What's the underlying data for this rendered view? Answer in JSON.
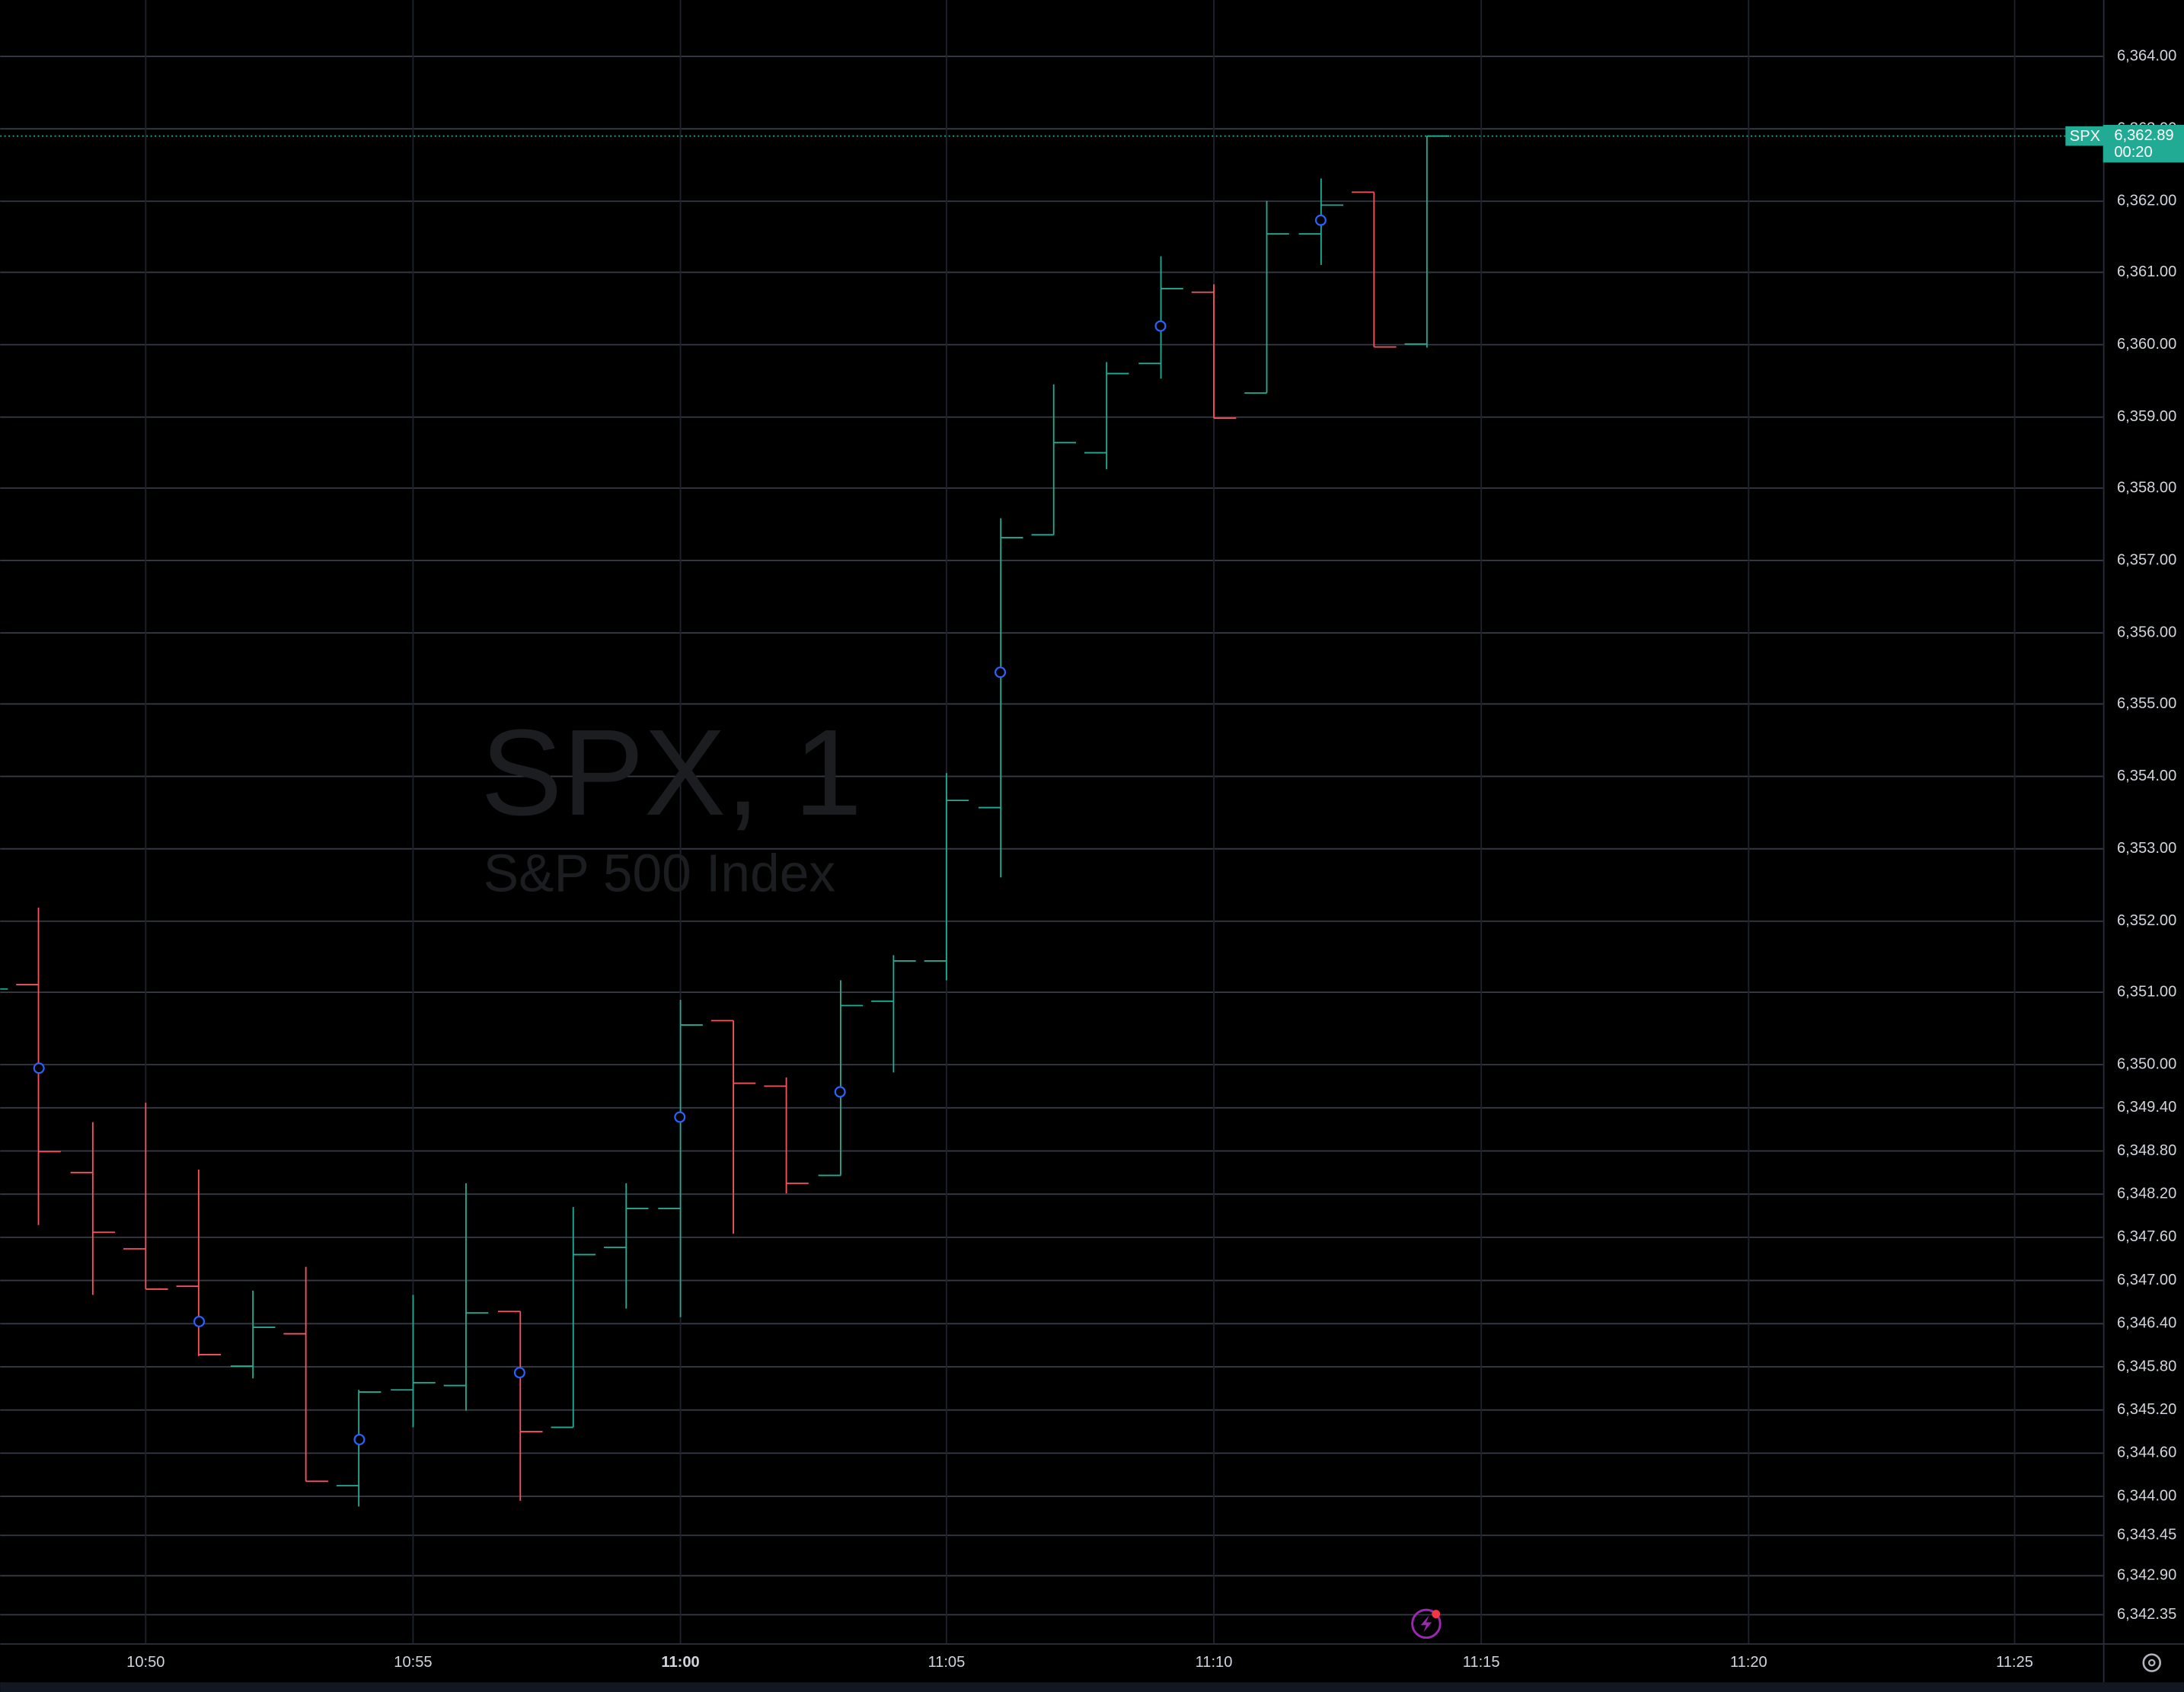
{
  "chart_data": {
    "type": "ohlc",
    "watermark": {
      "title": "SPX, 1",
      "subtitle": "S&P 500 Index"
    },
    "x": [
      "10:47",
      "10:48",
      "10:49",
      "10:50",
      "10:51",
      "10:52",
      "10:53",
      "10:54",
      "10:55",
      "10:56",
      "10:57",
      "10:58",
      "10:59",
      "11:00",
      "11:01",
      "11:02",
      "11:03",
      "11:04",
      "11:05",
      "11:06",
      "11:07",
      "11:08",
      "11:09",
      "11:10",
      "11:11",
      "11:12",
      "11:13",
      "11:14"
    ],
    "open": [
      6351.04,
      6351.1,
      6348.49,
      6347.43,
      6346.91,
      6345.8,
      6346.25,
      6344.14,
      6345.47,
      6345.53,
      6346.56,
      6344.95,
      6347.45,
      6347.99,
      6350.6,
      6349.69,
      6348.45,
      6350.87,
      6351.43,
      6353.56,
      6357.35,
      6358.49,
      6359.73,
      6360.72,
      6359.32,
      6361.53,
      6362.11,
      6360.0
    ],
    "high": [
      6351.1,
      6352.17,
      6349.19,
      6349.46,
      6348.53,
      6346.85,
      6347.18,
      6345.47,
      6346.79,
      6348.34,
      6346.56,
      6348.01,
      6348.34,
      6350.89,
      6350.6,
      6349.81,
      6351.16,
      6351.51,
      6354.04,
      6357.58,
      6359.44,
      6359.75,
      6361.22,
      6360.83,
      6361.99,
      6362.3,
      6362.11,
      6362.89
    ],
    "low": [
      6350.95,
      6347.76,
      6346.79,
      6346.87,
      6345.94,
      6345.63,
      6344.2,
      6343.85,
      6344.95,
      6345.18,
      6343.93,
      6344.95,
      6346.6,
      6346.48,
      6347.64,
      6348.2,
      6348.45,
      6349.88,
      6351.16,
      6352.59,
      6357.35,
      6358.26,
      6359.52,
      6358.97,
      6359.32,
      6361.1,
      6359.96,
      6359.95
    ],
    "close": [
      6351.04,
      6348.78,
      6347.66,
      6346.87,
      6345.96,
      6346.34,
      6344.2,
      6345.44,
      6345.57,
      6346.54,
      6344.89,
      6347.35,
      6347.99,
      6350.54,
      6349.73,
      6348.34,
      6350.81,
      6351.43,
      6353.66,
      6357.31,
      6358.63,
      6359.59,
      6360.77,
      6358.97,
      6361.53,
      6361.93,
      6359.96,
      6362.89
    ],
    "up_color": "#22ab94",
    "down_color": "#f7525f",
    "markers": {
      "color": "#2962ff",
      "x": [
        "10:48",
        "10:51",
        "10:54",
        "10:57",
        "11:00",
        "11:03",
        "11:06",
        "11:09",
        "11:12"
      ],
      "values": [
        6349.94,
        6346.42,
        6344.78,
        6345.71,
        6349.26,
        6349.61,
        6355.44,
        6360.25,
        6361.72
      ]
    },
    "xlim": [
      "10:47",
      "11:27"
    ],
    "xticks": [
      "10:50",
      "10:55",
      "11:00",
      "11:05",
      "11:10",
      "11:15",
      "11:20",
      "11:25"
    ],
    "ylim": [
      6341.95,
      6364.78
    ],
    "yticks": [
      {
        "value": 6342.35,
        "label": "6,342.35"
      },
      {
        "value": 6342.9,
        "label": "6,342.90"
      },
      {
        "value": 6343.45,
        "label": "6,343.45"
      },
      {
        "value": 6344,
        "label": "6,344.00"
      },
      {
        "value": 6344.6,
        "label": "6,344.60"
      },
      {
        "value": 6345.2,
        "label": "6,345.20"
      },
      {
        "value": 6345.8,
        "label": "6,345.80"
      },
      {
        "value": 6346.4,
        "label": "6,346.40"
      },
      {
        "value": 6347,
        "label": "6,347.00"
      },
      {
        "value": 6347.6,
        "label": "6,347.60"
      },
      {
        "value": 6348.2,
        "label": "6,348.20"
      },
      {
        "value": 6348.8,
        "label": "6,348.80"
      },
      {
        "value": 6349.4,
        "label": "6,349.40"
      },
      {
        "value": 6350,
        "label": "6,350.00"
      },
      {
        "value": 6351,
        "label": "6,351.00"
      },
      {
        "value": 6352,
        "label": "6,352.00"
      },
      {
        "value": 6353,
        "label": "6,353.00"
      },
      {
        "value": 6354,
        "label": "6,354.00"
      },
      {
        "value": 6355,
        "label": "6,355.00"
      },
      {
        "value": 6356,
        "label": "6,356.00"
      },
      {
        "value": 6357,
        "label": "6,357.00"
      },
      {
        "value": 6358,
        "label": "6,358.00"
      },
      {
        "value": 6359,
        "label": "6,359.00"
      },
      {
        "value": 6360,
        "label": "6,360.00"
      },
      {
        "value": 6361,
        "label": "6,361.00"
      },
      {
        "value": 6362,
        "label": "6,362.00"
      },
      {
        "value": 6363,
        "label": "6,363.00"
      },
      {
        "value": 6364,
        "label": "6,364.00"
      }
    ],
    "grid": true,
    "last_price": {
      "label": "SPX",
      "value": 6362.89,
      "value_label": "6,362.89",
      "countdown": "00:20"
    }
  }
}
